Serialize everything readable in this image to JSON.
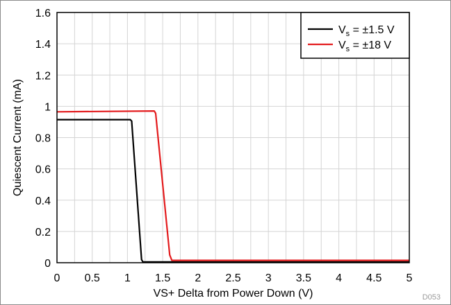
{
  "chart_data": {
    "type": "line",
    "xlabel": "VS+ Delta from Power Down (V)",
    "ylabel": "Quiescent Current (mA)",
    "xlim": [
      0,
      5
    ],
    "ylim": [
      0,
      1.6
    ],
    "xticks": [
      "0",
      "0.5",
      "1",
      "1.5",
      "2",
      "2.5",
      "3",
      "3.5",
      "4",
      "4.5",
      "5"
    ],
    "yticks": [
      "0",
      "0.2",
      "0.4",
      "0.6",
      "0.8",
      "1",
      "1.2",
      "1.4",
      "1.6"
    ],
    "xminor_step": 0.25,
    "grid": true,
    "legend_position": "top-right",
    "series": [
      {
        "name": "Vs = ±1.5 V",
        "legend": {
          "prefix": "V",
          "sub": "s",
          "suffix": " = ±1.5 V"
        },
        "color": "#000000",
        "x": [
          0,
          1.04,
          1.06,
          1.2,
          1.22,
          5
        ],
        "y": [
          0.915,
          0.915,
          0.905,
          0.02,
          0.005,
          0.005
        ]
      },
      {
        "name": "Vs = ±18 V",
        "legend": {
          "prefix": "V",
          "sub": "s",
          "suffix": " = ±18 V"
        },
        "color": "#e31a1c",
        "x": [
          0,
          1.38,
          1.4,
          1.6,
          1.63,
          5
        ],
        "y": [
          0.965,
          0.97,
          0.955,
          0.05,
          0.015,
          0.015
        ]
      }
    ],
    "figure_code": "D053"
  }
}
